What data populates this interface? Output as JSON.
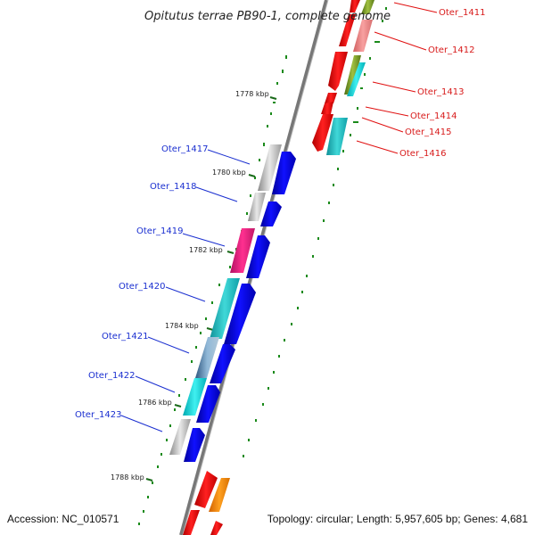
{
  "title": "Opitutus terrae PB90-1, complete genome",
  "accession": "Accession: NC_010571",
  "topology": "Topology: circular; Length: 5,957,605 bp; Genes: 4,681",
  "ticks": [
    "1778 kbp",
    "1780 kbp",
    "1782 kbp",
    "1784 kbp",
    "1786 kbp",
    "1788 kbp"
  ],
  "genes_right": [
    {
      "label": "Oter_1411",
      "color": "#6b8e23"
    },
    {
      "label": "Oter_1412",
      "color": "#f08080"
    },
    {
      "label": "Oter_1413",
      "color": "#00ced1"
    },
    {
      "label": "Oter_1414",
      "color": "#ff0000"
    },
    {
      "label": "Oter_1415",
      "color": "#ff0000"
    },
    {
      "label": "Oter_1416",
      "color": "#00ced1"
    }
  ],
  "genes_left": [
    {
      "label": "Oter_1417",
      "color": "#b0b0b0"
    },
    {
      "label": "Oter_1418",
      "color": "#b0b0b0"
    },
    {
      "label": "Oter_1419",
      "color": "#e0207a"
    },
    {
      "label": "Oter_1420",
      "color": "#20c0c8"
    },
    {
      "label": "Oter_1421",
      "color": "#6090b8"
    },
    {
      "label": "Oter_1422",
      "color": "#00e5ee"
    },
    {
      "label": "Oter_1423",
      "color": "#b0b0b0"
    }
  ],
  "colors": {
    "backbone": "#8a8a8a",
    "forward_cds": "#e00000",
    "reverse_cds": "#0a0ae0",
    "orange_cds": "#ff8c00",
    "gc_marks": "#1a8a1a",
    "label_red": "#d81b1b",
    "label_blue": "#1a2fd0"
  }
}
